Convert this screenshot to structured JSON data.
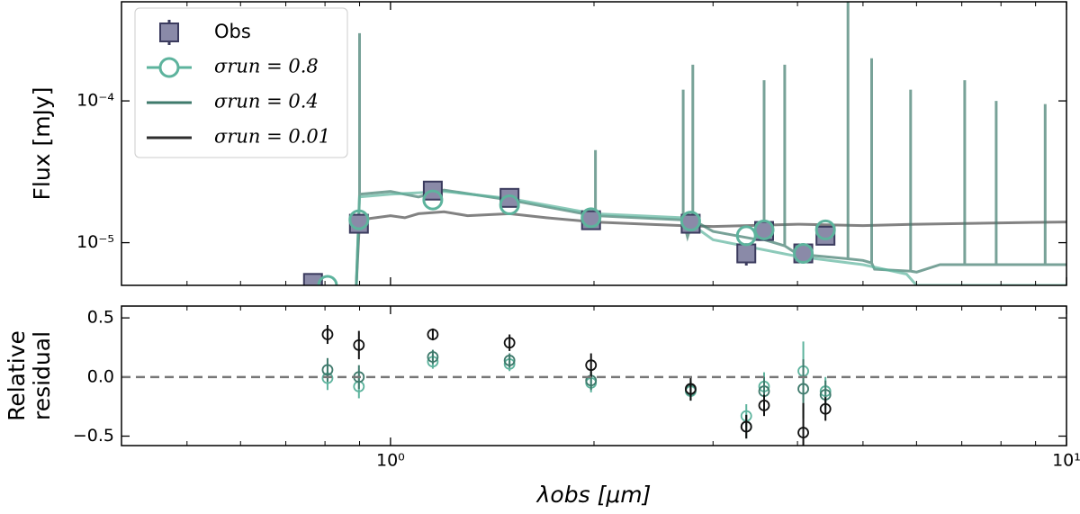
{
  "chart_data": [
    {
      "type": "sed",
      "ylabel": "Flux [mJy]",
      "log_x": true,
      "log_y": true,
      "legend": "upper left",
      "xlim": [
        0.4,
        10
      ],
      "xticks": [
        {
          "value": 1,
          "label": "10⁰"
        },
        {
          "value": 10,
          "label": "10¹"
        }
      ],
      "xminorticks": [
        0.4,
        0.5,
        0.6,
        0.7,
        0.8,
        0.9,
        2,
        3,
        4,
        5,
        6,
        7,
        8,
        9
      ],
      "ylim": [
        5e-06,
        0.0005
      ],
      "yticks": [
        {
          "value": 1e-05,
          "label": "10⁻⁵"
        },
        {
          "value": 0.0001,
          "label": "10⁻⁴"
        }
      ],
      "observed": {
        "name": "Obs",
        "color": "#8a8aa8",
        "edge": "#3b3b5e",
        "x": [
          0.768,
          0.898,
          1.155,
          1.5,
          1.98,
          2.78,
          3.36,
          3.57,
          4.08,
          4.4
        ],
        "values": [
          5.2e-06,
          1.36e-05,
          2.33e-05,
          2.07e-05,
          1.44e-05,
          1.36e-05,
          8.4e-06,
          1.21e-05,
          8.4e-06,
          1.12e-05
        ],
        "errors": [
          5e-07,
          1.5e-06,
          2.5e-06,
          2e-06,
          1.2e-06,
          1.2e-06,
          1.5e-06,
          1.2e-06,
          1.2e-06,
          1.2e-06
        ]
      },
      "series": [
        {
          "name": "σrun = 0.8",
          "color": "#5db39d",
          "marker": "circle",
          "x": [
            0.89,
            0.9,
            1.0,
            1.2,
            1.5,
            2.0,
            2.7,
            3.0,
            4.0,
            5.0,
            5.8,
            6.0,
            7,
            10
          ],
          "values": [
            5e-06,
            2.1e-05,
            2.2e-05,
            2.3e-05,
            2.05e-05,
            1.6e-05,
            1.5e-05,
            1.05e-05,
            8e-06,
            7e-06,
            6e-06,
            5e-06,
            5e-06,
            5e-06
          ],
          "points_x": [
            0.807,
            0.898,
            1.155,
            1.5,
            1.98,
            2.78,
            3.36,
            3.57,
            4.08,
            4.4
          ],
          "points_values": [
            5e-06,
            1.45e-05,
            2e-05,
            1.85e-05,
            1.5e-05,
            1.42e-05,
            1.12e-05,
            1.23e-05,
            8.4e-06,
            1.23e-05
          ]
        },
        {
          "name": "σrun = 0.4",
          "color": "#3f7a6c",
          "x": [
            0.89,
            0.9,
            0.9,
            0.9,
            1.0,
            1.1,
            1.2,
            1.5,
            2.0,
            2.01,
            2.01,
            2.01,
            2.7,
            2.71,
            2.71,
            2.71,
            2.75,
            2.8,
            2.8,
            2.8,
            3.0,
            3.5,
            3.57,
            3.57,
            3.57,
            3.83,
            3.83,
            3.83,
            4.0,
            4.75,
            4.75,
            4.75,
            5.0,
            5.15,
            5.15,
            5.15,
            5.2,
            5.88,
            5.88,
            5.88,
            6.0,
            6.5,
            7.07,
            7.07,
            7.07,
            7.87,
            7.87,
            7.87,
            9.3,
            9.3,
            9.3,
            10
          ],
          "values": [
            5e-06,
            2.2e-05,
            0.0003,
            2.2e-05,
            2.3e-05,
            2.1e-05,
            2.35e-05,
            2e-05,
            1.55e-05,
            1.55e-05,
            4.5e-05,
            1.55e-05,
            1.45e-05,
            1.45e-05,
            0.00012,
            1.45e-05,
            1.1e-05,
            1.45e-05,
            0.00018,
            1.45e-05,
            1.2e-05,
            1.05e-05,
            1.05e-05,
            0.00014,
            1.05e-05,
            9.5e-06,
            0.00018,
            9.5e-06,
            8.3e-06,
            7.7e-06,
            0.0005,
            7.7e-06,
            7.5e-06,
            7.2e-06,
            0.0002,
            7.2e-06,
            6.5e-06,
            6.3e-06,
            0.00012,
            6.3e-06,
            6.2e-06,
            7e-06,
            7e-06,
            0.00014,
            7e-06,
            7e-06,
            0.0001,
            7e-06,
            7e-06,
            9.5e-05,
            7e-06,
            7e-06
          ]
        },
        {
          "name": "σrun = 0.01",
          "color": "#2e2e2e",
          "x": [
            0.89,
            0.9,
            0.95,
            1.0,
            1.05,
            1.1,
            1.2,
            1.3,
            1.5,
            1.7,
            2.0,
            2.4,
            2.7,
            3.0,
            4.0,
            5.0,
            6.0,
            8.0,
            10
          ],
          "values": [
            5e-06,
            1.45e-05,
            1.5e-05,
            1.55e-05,
            1.5e-05,
            1.6e-05,
            1.65e-05,
            1.55e-05,
            1.6e-05,
            1.5e-05,
            1.4e-05,
            1.35e-05,
            1.32e-05,
            1.3e-05,
            1.35e-05,
            1.32e-05,
            1.35e-05,
            1.38e-05,
            1.4e-05
          ]
        }
      ]
    },
    {
      "type": "residual",
      "ylabel": [
        "Relative",
        "residual"
      ],
      "xlabel": "λobs [μm]",
      "log_x": true,
      "xlim": [
        0.4,
        10
      ],
      "xticks": [
        {
          "value": 1,
          "label": "10⁰"
        },
        {
          "value": 10,
          "label": "10¹"
        }
      ],
      "xminorticks": [
        0.4,
        0.5,
        0.6,
        0.7,
        0.8,
        0.9,
        2,
        3,
        4,
        5,
        6,
        7,
        8,
        9
      ],
      "ylim": [
        -0.58,
        0.6
      ],
      "yticks": [
        {
          "value": -0.5,
          "label": "−0.5"
        },
        {
          "value": 0,
          "label": "0.0"
        },
        0.5
      ],
      "hline": 0,
      "x": [
        0.807,
        0.898,
        1.155,
        1.5,
        1.98,
        2.78,
        3.36,
        3.57,
        4.08,
        4.4
      ],
      "series": [
        {
          "color": "#5db39d",
          "values": [
            -0.01,
            -0.08,
            0.13,
            0.11,
            -0.05,
            -0.12,
            -0.33,
            -0.08,
            0.05,
            -0.12
          ],
          "errors": [
            0.1,
            0.1,
            0.06,
            0.06,
            0.08,
            0.08,
            0.1,
            0.12,
            0.25,
            0.12
          ]
        },
        {
          "color": "#3f7a6c",
          "values": [
            0.06,
            0.0,
            0.17,
            0.14,
            -0.03,
            -0.11,
            -0.42,
            -0.12,
            -0.1,
            -0.15
          ],
          "errors": [
            0.1,
            0.1,
            0.06,
            0.06,
            0.08,
            0.08,
            0.1,
            0.12,
            0.25,
            0.12
          ]
        },
        {
          "color": "#111111",
          "values": [
            0.36,
            0.27,
            0.36,
            0.29,
            0.1,
            -0.1,
            -0.42,
            -0.24,
            -0.47,
            -0.27
          ],
          "errors": [
            0.08,
            0.12,
            0.05,
            0.07,
            0.1,
            0.1,
            0.1,
            0.09,
            0.25,
            0.1
          ]
        }
      ]
    }
  ]
}
